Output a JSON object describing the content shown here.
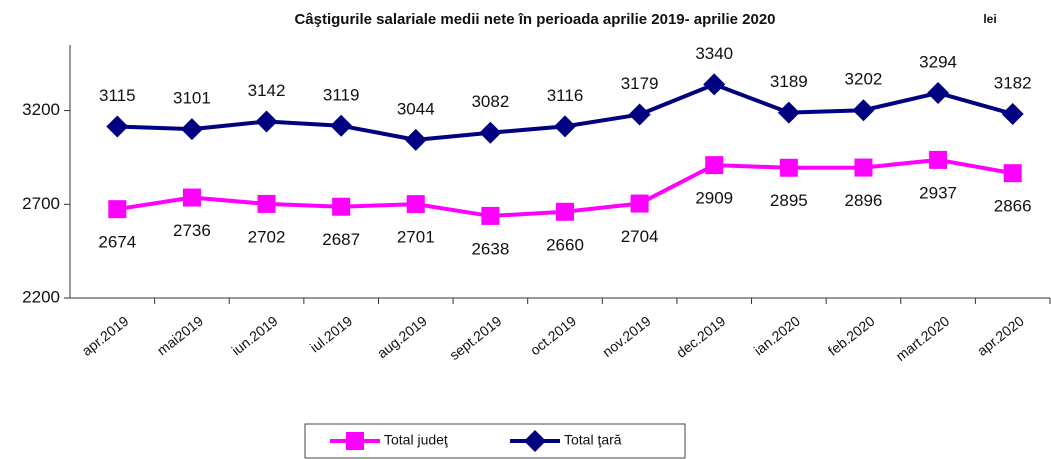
{
  "chart_data": {
    "type": "line",
    "title": "Câştigurile salariale medii nete în perioada aprilie 2019- aprilie 2020",
    "annotation": "lei",
    "categories": [
      "apr.2019",
      "mai2019",
      "iun.2019",
      "iul.2019",
      "aug.2019",
      "sept.2019",
      "oct.2019",
      "nov.2019",
      "dec.2019",
      "ian.2020",
      "feb.2020",
      "mart.2020",
      "apr.2020"
    ],
    "series": [
      {
        "name": "Total judeţ",
        "color": "#ff00ff",
        "marker": "square",
        "values": [
          2674,
          2736,
          2702,
          2687,
          2701,
          2638,
          2660,
          2704,
          2909,
          2895,
          2896,
          2937,
          2866
        ]
      },
      {
        "name": "Total ţară",
        "color": "#000080",
        "marker": "diamond",
        "values": [
          3115,
          3101,
          3142,
          3119,
          3044,
          3082,
          3116,
          3179,
          3340,
          3189,
          3202,
          3294,
          3182
        ]
      }
    ],
    "ylim": [
      2200,
      3550
    ],
    "yticks": [
      2200,
      2700,
      3200
    ],
    "legend": "bottom"
  }
}
